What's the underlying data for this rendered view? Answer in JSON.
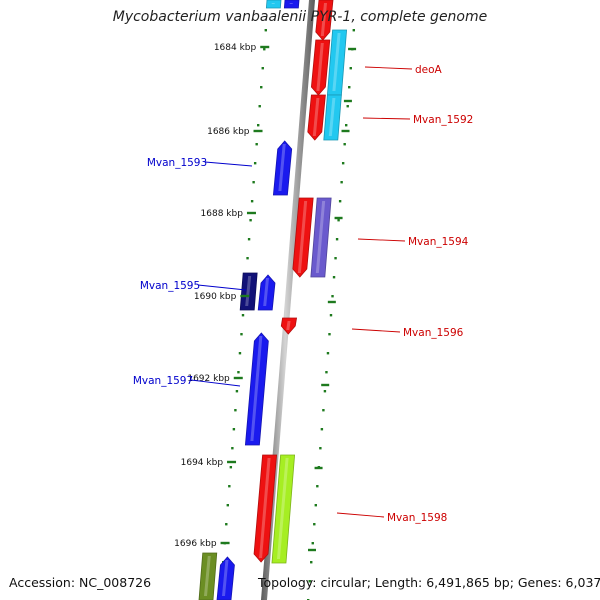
{
  "title": "Mycobacterium vanbaalenii PYR-1, complete genome",
  "footer": {
    "accession": "Accession: NC_008726",
    "topology": "Topology: circular; Length: 6,491,865 bp; Genes: 6,037"
  },
  "colors": {
    "background": "#ffffff",
    "backbone": "#888888",
    "tick": "#1e7a1e",
    "forward_label": "#0000cc",
    "reverse_label": "#cc0000",
    "red": "#ee1111",
    "blue": "#1a1aee",
    "navy": "#111177",
    "cyan": "#22c8f0",
    "purple": "#6a5acd",
    "lime": "#a6ee22",
    "olive": "#6b8e23"
  },
  "kbp_ticks": [
    {
      "label": "1684 kbp"
    },
    {
      "label": "1686 kbp"
    },
    {
      "label": "1688 kbp"
    },
    {
      "label": "1690 kbp"
    },
    {
      "label": "1692 kbp"
    },
    {
      "label": "1694 kbp"
    },
    {
      "label": "1696 kbp"
    }
  ],
  "gene_labels": {
    "forward": [
      {
        "name": "Mvan_1593"
      },
      {
        "name": "Mvan_1595"
      },
      {
        "name": "Mvan_1597"
      }
    ],
    "reverse": [
      {
        "name": "deoA"
      },
      {
        "name": "Mvan_1592"
      },
      {
        "name": "Mvan_1594"
      },
      {
        "name": "Mvan_1596"
      },
      {
        "name": "Mvan_1598"
      }
    ]
  }
}
